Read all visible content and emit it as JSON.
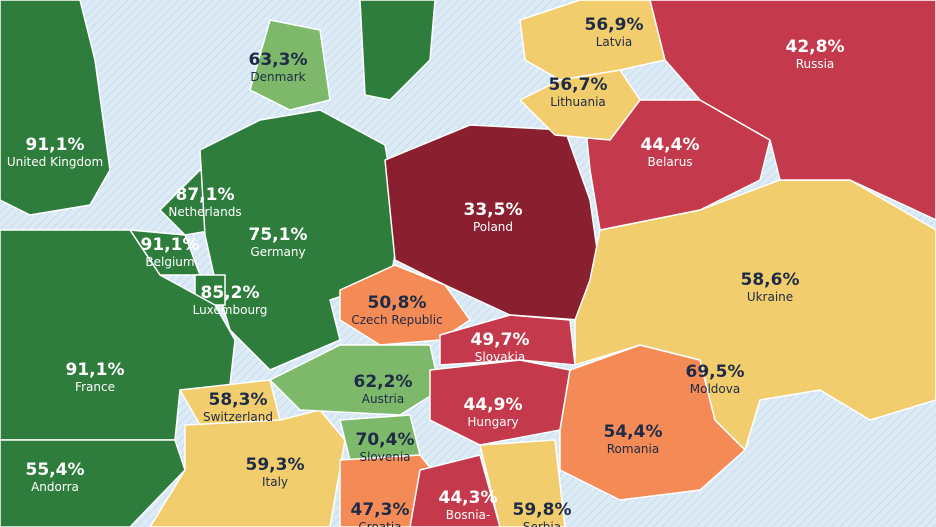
{
  "regions": [
    {
      "name": "United Kingdom",
      "value": "91,1%",
      "color": "#2f7d3d"
    },
    {
      "name": "Denmark",
      "value": "63,3%",
      "color": "#7db86b"
    },
    {
      "name": "Netherlands",
      "value": "87,1%",
      "color": "#2f7d3d"
    },
    {
      "name": "Belgium",
      "value": "91,1%",
      "color": "#2f7d3d"
    },
    {
      "name": "Germany",
      "value": "75,1%",
      "color": "#2f7d3d"
    },
    {
      "name": "Luxembourg",
      "value": "85,2%",
      "color": "#2f7d3d"
    },
    {
      "name": "France",
      "value": "91,1%",
      "color": "#2f7d3d"
    },
    {
      "name": "Andorra",
      "value": "55,4%",
      "color": "#2f7d3d"
    },
    {
      "name": "Switzerland",
      "value": "58,3%",
      "color": "#f2cd6d"
    },
    {
      "name": "Italy",
      "value": "59,3%",
      "color": "#f2cd6d"
    },
    {
      "name": "Poland",
      "value": "33,5%",
      "color": "#8a1f30"
    },
    {
      "name": "Czech Republic",
      "value": "50,8%",
      "color": "#f48a55"
    },
    {
      "name": "Slovakia",
      "value": "49,7%",
      "color": "#c43a4c"
    },
    {
      "name": "Austria",
      "value": "62,2%",
      "color": "#7db86b"
    },
    {
      "name": "Slovenia",
      "value": "70,4%",
      "color": "#7db86b"
    },
    {
      "name": "Hungary",
      "value": "44,9%",
      "color": "#c43a4c"
    },
    {
      "name": "Croatia",
      "value": "47,3%",
      "color": "#f48a55"
    },
    {
      "name": "Bosnia-",
      "value": "44,3%",
      "color": "#c43a4c"
    },
    {
      "name": "Serbia",
      "value": "59,8%",
      "color": "#f2cd6d"
    },
    {
      "name": "Romania",
      "value": "54,4%",
      "color": "#f48a55"
    },
    {
      "name": "Moldova",
      "value": "69,5%",
      "color": "#7db86b"
    },
    {
      "name": "Ukraine",
      "value": "58,6%",
      "color": "#f2cd6d"
    },
    {
      "name": "Belarus",
      "value": "44,4%",
      "color": "#c43a4c"
    },
    {
      "name": "Lithuania",
      "value": "56,7%",
      "color": "#f2cd6d"
    },
    {
      "name": "Latvia",
      "value": "56,9%",
      "color": "#f2cd6d"
    },
    {
      "name": "Russia",
      "value": "42,8%",
      "color": "#c43a4c"
    }
  ]
}
